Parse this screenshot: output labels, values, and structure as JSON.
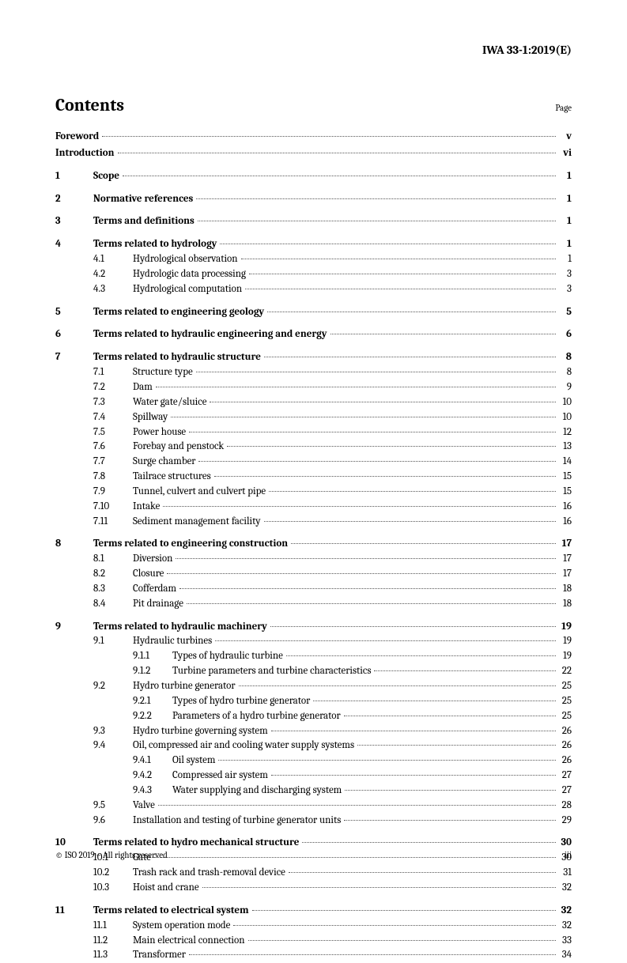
{
  "doc_id": "IWA 33-1:2019(E)",
  "contents_title": "Contents",
  "page_label": "Page",
  "footer_left": "© ISO 2019 – All rights reserved",
  "footer_right": "iii",
  "front": [
    {
      "title": "Foreword",
      "page": "v"
    },
    {
      "title": "Introduction",
      "page": "vi"
    }
  ],
  "sections": [
    {
      "num": "1",
      "title": "Scope",
      "page": "1"
    },
    {
      "num": "2",
      "title": "Normative references",
      "page": "1"
    },
    {
      "num": "3",
      "title": "Terms and definitions",
      "page": "1"
    },
    {
      "num": "4",
      "title": "Terms related to hydrology",
      "page": "1",
      "subs": [
        {
          "num": "4.1",
          "title": "Hydrological observation",
          "page": "1"
        },
        {
          "num": "4.2",
          "title": "Hydrologic data processing",
          "page": "3"
        },
        {
          "num": "4.3",
          "title": "Hydrological computation",
          "page": "3"
        }
      ]
    },
    {
      "num": "5",
      "title": "Terms related to engineering geology",
      "page": "5"
    },
    {
      "num": "6",
      "title": "Terms related to hydraulic engineering and energy",
      "page": "6"
    },
    {
      "num": "7",
      "title": "Terms related to hydraulic structure",
      "page": "8",
      "subs": [
        {
          "num": "7.1",
          "title": "Structure type",
          "page": "8"
        },
        {
          "num": "7.2",
          "title": "Dam",
          "page": "9"
        },
        {
          "num": "7.3",
          "title": "Water gate/sluice",
          "page": "10"
        },
        {
          "num": "7.4",
          "title": "Spillway",
          "page": "10"
        },
        {
          "num": "7.5",
          "title": "Power house",
          "page": "12"
        },
        {
          "num": "7.6",
          "title": "Forebay and penstock",
          "page": "13"
        },
        {
          "num": "7.7",
          "title": "Surge chamber",
          "page": "14"
        },
        {
          "num": "7.8",
          "title": "Tailrace structures",
          "page": "15"
        },
        {
          "num": "7.9",
          "title": "Tunnel, culvert and culvert pipe",
          "page": "15"
        },
        {
          "num": "7.10",
          "title": "Intake",
          "page": "16"
        },
        {
          "num": "7.11",
          "title": "Sediment management facility",
          "page": "16"
        }
      ]
    },
    {
      "num": "8",
      "title": "Terms related to engineering construction",
      "page": "17",
      "subs": [
        {
          "num": "8.1",
          "title": "Diversion",
          "page": "17"
        },
        {
          "num": "8.2",
          "title": "Closure",
          "page": "17"
        },
        {
          "num": "8.3",
          "title": "Cofferdam",
          "page": "18"
        },
        {
          "num": "8.4",
          "title": "Pit drainage",
          "page": "18"
        }
      ]
    },
    {
      "num": "9",
      "title": "Terms related to hydraulic machinery",
      "page": "19",
      "subs": [
        {
          "num": "9.1",
          "title": "Hydraulic turbines",
          "page": "19",
          "subs": [
            {
              "num": "9.1.1",
              "title": "Types of hydraulic turbine",
              "page": "19"
            },
            {
              "num": "9.1.2",
              "title": "Turbine parameters and turbine characteristics",
              "page": "22"
            }
          ]
        },
        {
          "num": "9.2",
          "title": "Hydro turbine generator",
          "page": "25",
          "subs": [
            {
              "num": "9.2.1",
              "title": "Types of hydro turbine generator",
              "page": "25"
            },
            {
              "num": "9.2.2",
              "title": "Parameters of a hydro turbine generator",
              "page": "25"
            }
          ]
        },
        {
          "num": "9.3",
          "title": "Hydro turbine governing system",
          "page": "26"
        },
        {
          "num": "9.4",
          "title": "Oil, compressed air and cooling water supply systems",
          "page": "26",
          "subs": [
            {
              "num": "9.4.1",
              "title": "Oil system",
              "page": "26"
            },
            {
              "num": "9.4.2",
              "title": "Compressed air system",
              "page": "27"
            },
            {
              "num": "9.4.3",
              "title": "Water supplying and discharging system",
              "page": "27"
            }
          ]
        },
        {
          "num": "9.5",
          "title": "Valve",
          "page": "28"
        },
        {
          "num": "9.6",
          "title": "Installation and testing of turbine generator units",
          "page": "29"
        }
      ]
    },
    {
      "num": "10",
      "title": "Terms related to hydro mechanical structure",
      "page": "30",
      "subs": [
        {
          "num": "10.1",
          "title": "Gate",
          "page": "30"
        },
        {
          "num": "10.2",
          "title": "Trash rack and trash-removal device",
          "page": "31"
        },
        {
          "num": "10.3",
          "title": "Hoist and crane",
          "page": "32"
        }
      ]
    },
    {
      "num": "11",
      "title": "Terms related to electrical system",
      "page": "32",
      "subs": [
        {
          "num": "11.1",
          "title": "System operation mode",
          "page": "32"
        },
        {
          "num": "11.2",
          "title": "Main electrical connection",
          "page": "33"
        },
        {
          "num": "11.3",
          "title": "Transformer",
          "page": "34"
        }
      ]
    }
  ]
}
